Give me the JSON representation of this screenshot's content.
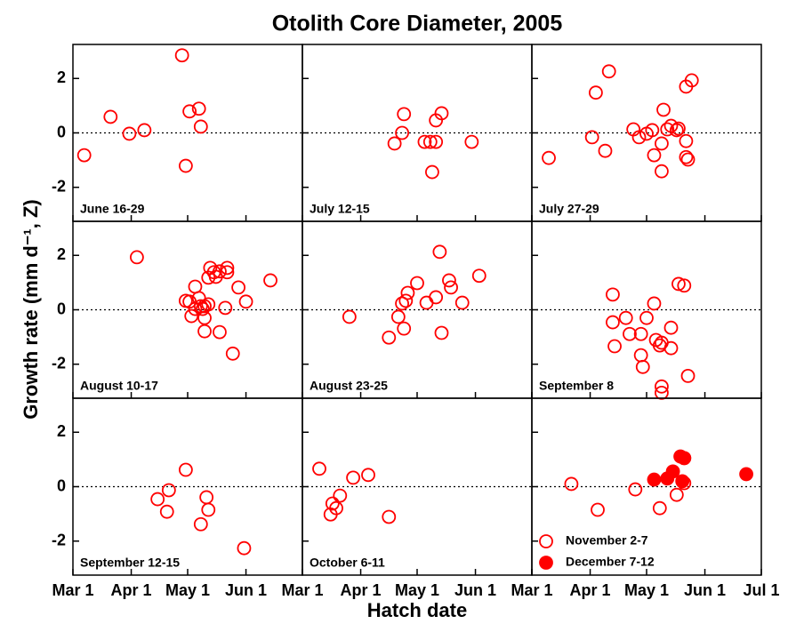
{
  "title": "Otolith Core Diameter, 2005",
  "xlabel": "Hatch date",
  "ylabel": "Growth rate (mm d⁻¹, Z)",
  "xlim": [
    60,
    182
  ],
  "ylim": [
    -3.25,
    3.25
  ],
  "xticks": [
    {
      "value": 60,
      "label": "Mar 1"
    },
    {
      "value": 91,
      "label": "Apr 1"
    },
    {
      "value": 121,
      "label": "May 1"
    },
    {
      "value": 152,
      "label": "Jun 1"
    },
    {
      "value": 182,
      "label": "Jul 1"
    }
  ],
  "yticks": [
    -2,
    0,
    2
  ],
  "hline": 0,
  "chart_data": [
    {
      "type": "scatter",
      "label": "June 16-29",
      "series": [
        {
          "color": "#ff0000",
          "marker": "open",
          "x": [
            66,
            80,
            90,
            98,
            118,
            122,
            120,
            127,
            128
          ],
          "values": [
            -0.82,
            0.59,
            -0.03,
            0.1,
            2.85,
            0.79,
            -1.21,
            0.89,
            0.23
          ]
        }
      ]
    },
    {
      "type": "scatter",
      "label": "July 12-15",
      "series": [
        {
          "color": "#ff0000",
          "marker": "open",
          "x": [
            109,
            113,
            114,
            134,
            131,
            125,
            128,
            131,
            129,
            150
          ],
          "values": [
            -0.39,
            0.0,
            0.69,
            0.72,
            0.46,
            -0.33,
            -0.33,
            -0.33,
            -1.44,
            -0.33
          ]
        }
      ]
    },
    {
      "type": "scatter",
      "label": "July 27-29",
      "series": [
        {
          "color": "#ff0000",
          "marker": "open",
          "x": [
            69,
            92,
            94,
            101,
            99,
            114,
            117,
            121,
            124,
            125,
            130,
            129,
            129,
            132,
            134,
            137,
            138,
            142,
            142,
            143,
            142,
            145
          ],
          "values": [
            -0.92,
            -0.16,
            1.48,
            2.26,
            -0.66,
            0.13,
            -0.16,
            -0.03,
            0.1,
            -0.82,
            0.85,
            -0.39,
            -1.41,
            0.13,
            0.26,
            0.1,
            0.16,
            -0.3,
            -0.89,
            -0.98,
            1.7,
            1.93
          ]
        }
      ]
    },
    {
      "type": "scatter",
      "label": "August 10-17",
      "series": [
        {
          "color": "#ff0000",
          "marker": "open",
          "x": [
            94,
            120,
            122,
            123,
            125,
            125,
            127,
            128,
            129,
            130,
            130,
            130,
            132,
            132,
            133,
            135,
            136,
            138,
            142,
            142,
            138,
            141,
            148,
            145,
            152,
            165
          ],
          "values": [
            1.93,
            0.33,
            0.3,
            -0.23,
            0.03,
            0.85,
            0.43,
            0.13,
            0.03,
            0.13,
            -0.3,
            -0.79,
            0.2,
            1.18,
            1.54,
            1.38,
            1.21,
            1.41,
            1.54,
            1.38,
            -0.82,
            0.07,
            0.82,
            -1.61,
            0.3,
            1.08
          ]
        }
      ]
    },
    {
      "type": "scatter",
      "label": "August 23-25",
      "series": [
        {
          "color": "#ff0000",
          "marker": "open",
          "x": [
            85,
            106,
            111,
            113,
            114,
            115,
            116,
            121,
            126,
            131,
            133,
            134,
            138,
            139,
            145,
            154
          ],
          "values": [
            -0.26,
            -1.02,
            -0.26,
            0.23,
            -0.69,
            0.33,
            0.62,
            0.98,
            0.26,
            0.46,
            2.13,
            -0.85,
            1.08,
            0.82,
            0.26,
            1.25
          ]
        }
      ]
    },
    {
      "type": "scatter",
      "label": "September 8",
      "series": [
        {
          "color": "#ff0000",
          "marker": "open",
          "x": [
            103,
            103,
            104,
            110,
            112,
            118,
            121,
            118,
            119,
            125,
            126,
            128,
            129,
            129,
            129,
            134,
            134,
            138,
            141,
            143
          ],
          "values": [
            0.56,
            -0.46,
            -1.34,
            -0.3,
            -0.89,
            -0.89,
            -0.3,
            -1.67,
            -2.1,
            0.23,
            -1.11,
            -1.31,
            -1.21,
            -2.82,
            -3.05,
            -0.66,
            -1.41,
            0.95,
            0.89,
            -2.43
          ]
        }
      ]
    },
    {
      "type": "scatter",
      "label": "September 12-15",
      "series": [
        {
          "color": "#ff0000",
          "marker": "open",
          "x": [
            105,
            111,
            110,
            120,
            128,
            131,
            132,
            151
          ],
          "values": [
            -0.46,
            -0.13,
            -0.92,
            0.62,
            -1.38,
            -0.39,
            -0.85,
            -2.26
          ]
        }
      ]
    },
    {
      "type": "scatter",
      "label": "October 6-11",
      "series": [
        {
          "color": "#ff0000",
          "marker": "open",
          "x": [
            69,
            80,
            76,
            78,
            75,
            87,
            95,
            106
          ],
          "values": [
            0.66,
            -0.33,
            -0.62,
            -0.79,
            -1.02,
            0.33,
            0.43,
            -1.11
          ]
        }
      ]
    },
    {
      "type": "scatter",
      "legend": "lower left",
      "series": [
        {
          "name": "November 2-7",
          "color": "#ff0000",
          "marker": "open",
          "x": [
            81,
            95,
            115,
            128,
            137,
            141,
            141
          ],
          "values": [
            0.1,
            -0.85,
            -0.1,
            -0.79,
            -0.3,
            0.13,
            1.05
          ]
        },
        {
          "name": "December 7-12",
          "color": "#ff0000",
          "marker": "filled",
          "x": [
            125,
            132,
            135,
            139,
            141,
            140,
            174
          ],
          "values": [
            0.26,
            0.3,
            0.56,
            1.11,
            1.05,
            0.2,
            0.46
          ]
        }
      ]
    }
  ]
}
